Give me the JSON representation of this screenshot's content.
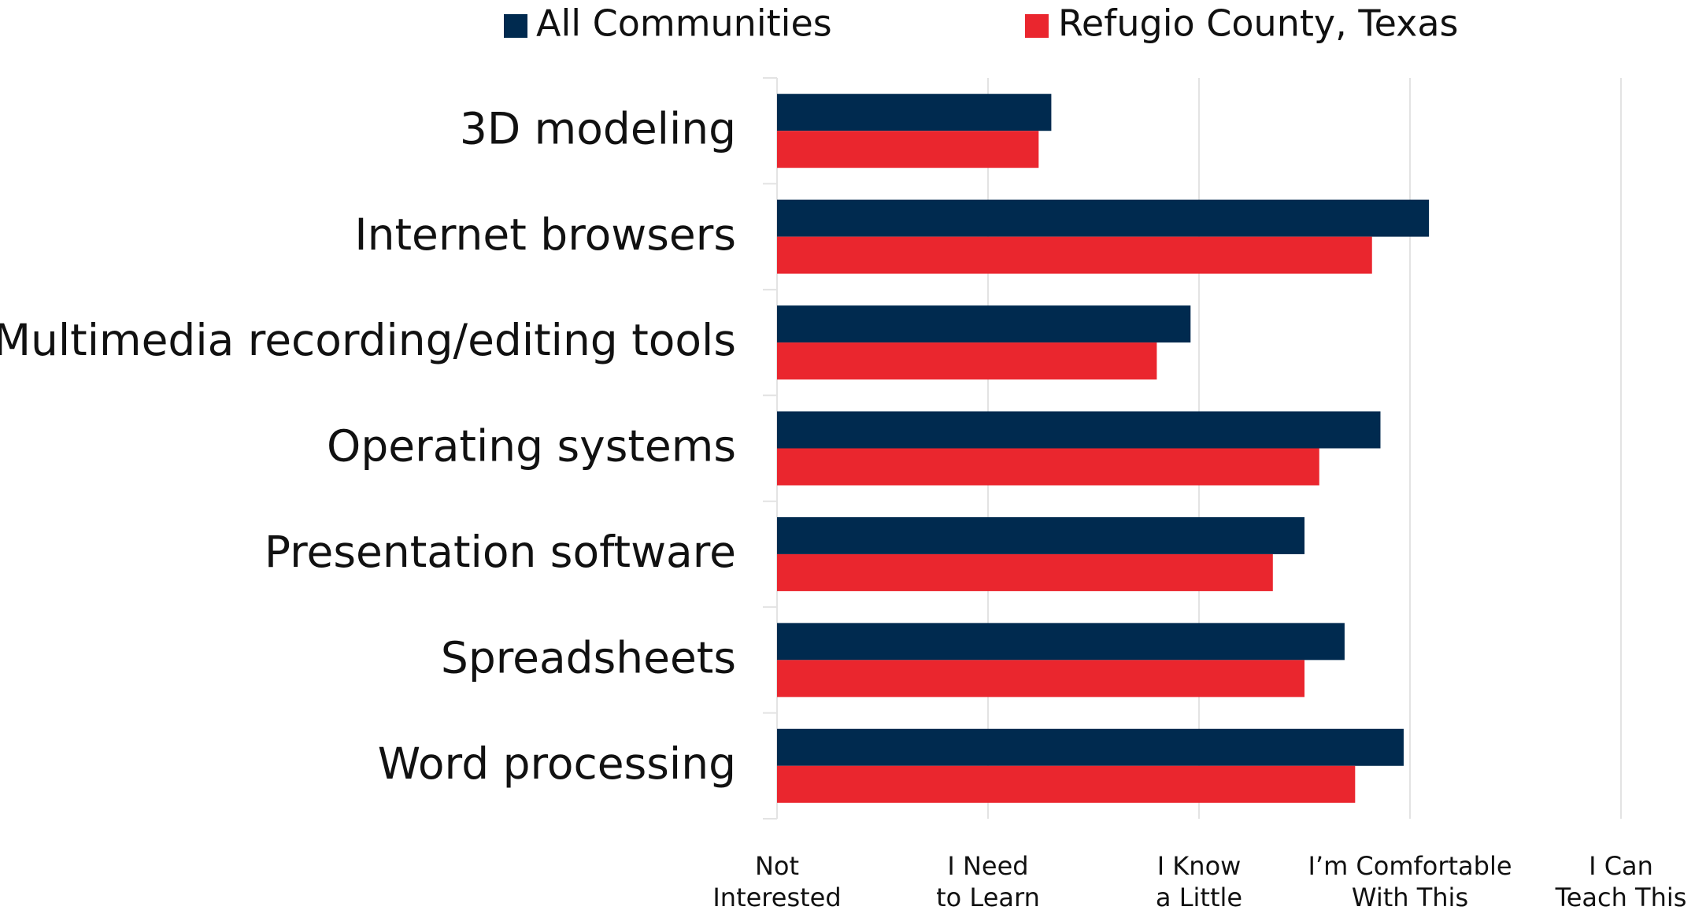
{
  "chart_data": {
    "type": "bar",
    "orientation": "horizontal",
    "categories": [
      "3D modeling",
      "Internet browsers",
      "Multimedia recording/editing tools",
      "Operating systems",
      "Presentation software",
      "Spreadsheets",
      "Word processing"
    ],
    "series": [
      {
        "name": "All Communities",
        "color": "#002A4F",
        "values": [
          1.3,
          3.09,
          1.96,
          2.86,
          2.5,
          2.69,
          2.97
        ]
      },
      {
        "name": "Refugio County, Texas",
        "color": "#EA262E",
        "values": [
          1.24,
          2.82,
          1.8,
          2.57,
          2.35,
          2.5,
          2.74
        ]
      }
    ],
    "x_ticks": [
      {
        "value": 0,
        "label": [
          "Not",
          "Interested"
        ]
      },
      {
        "value": 1,
        "label": [
          "I Need",
          "to Learn"
        ]
      },
      {
        "value": 2,
        "label": [
          "I Know",
          "a Little"
        ]
      },
      {
        "value": 3,
        "label": [
          "I’m Comfortable",
          "With This"
        ]
      },
      {
        "value": 4,
        "label": [
          "I Can",
          "Teach This"
        ]
      }
    ],
    "xlim": [
      0,
      4
    ],
    "title": "",
    "xlabel": "",
    "ylabel": "",
    "grid": true,
    "legend_position": "top"
  }
}
